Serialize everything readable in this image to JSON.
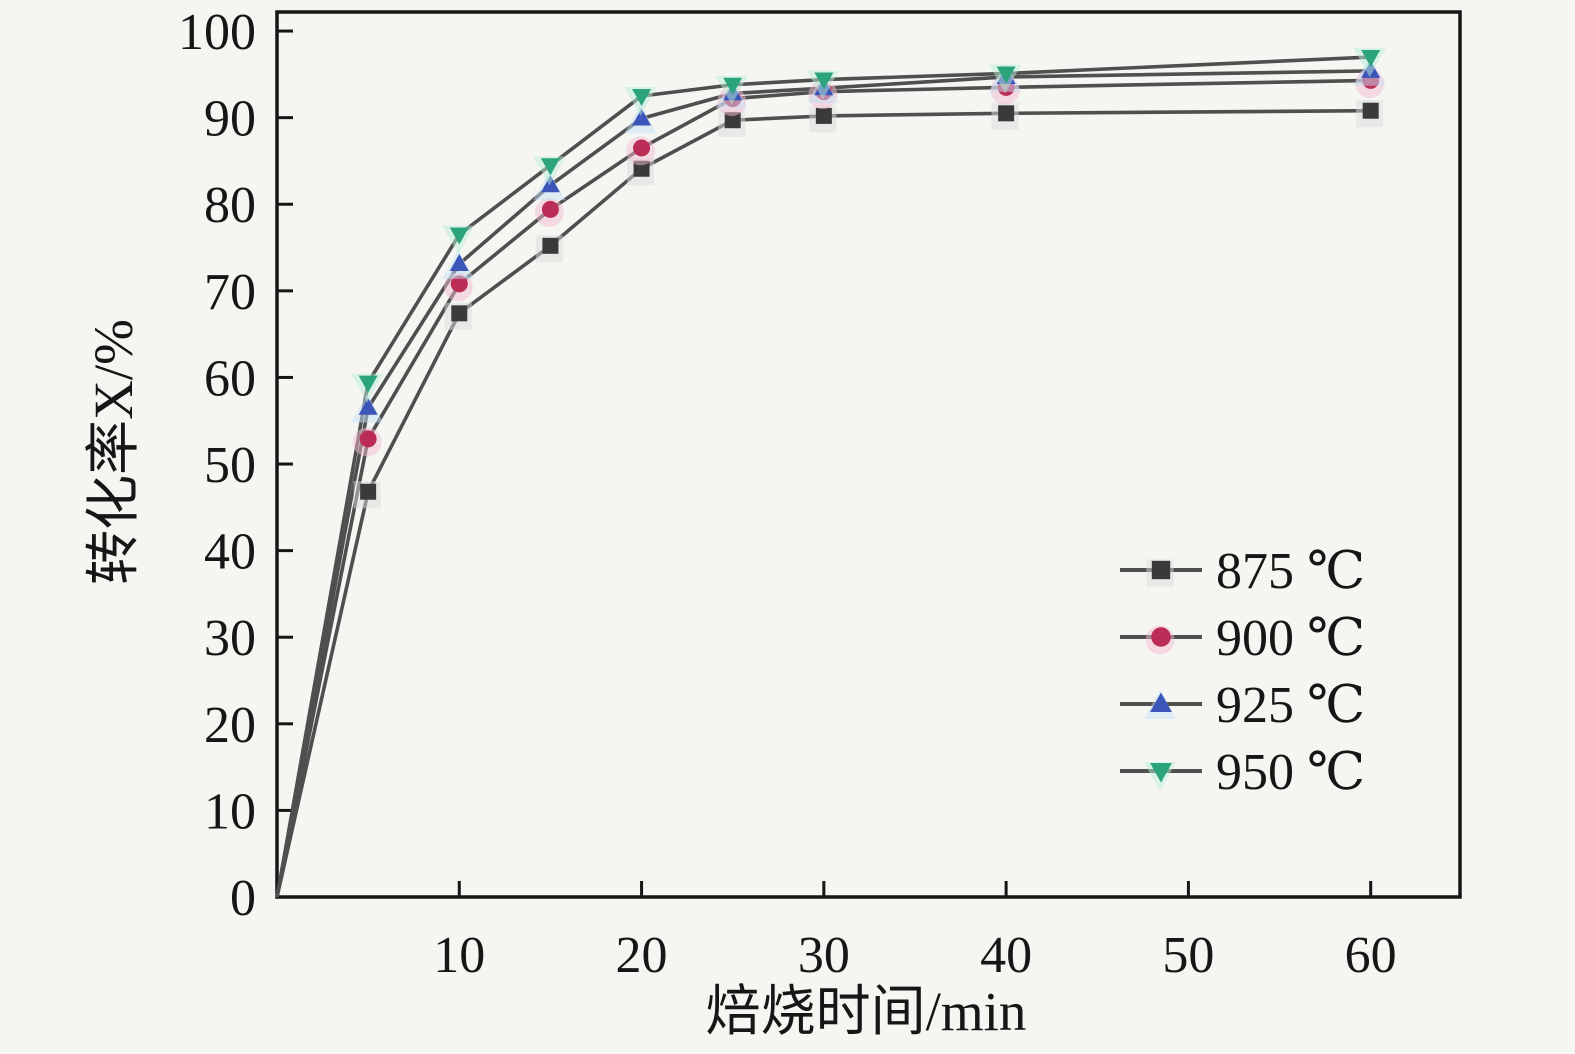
{
  "figure": {
    "background": "#f5f5f2",
    "frame_color": "#161616",
    "text_color": "#161616"
  },
  "chart_data": {
    "type": "line",
    "title": "",
    "xlabel": "焙烧时间/min",
    "ylabel": "转化率X/%",
    "grid": false,
    "legend_position": "inside lower right",
    "xlim": [
      0,
      64.9
    ],
    "ylim": [
      0,
      102.2
    ],
    "x_ticks": [
      10,
      20,
      30,
      40,
      50,
      60
    ],
    "y_ticks": [
      0,
      10,
      20,
      30,
      40,
      50,
      60,
      70,
      80,
      90,
      100
    ],
    "x": [
      0,
      5,
      10,
      15,
      20,
      25,
      30,
      40,
      60
    ],
    "line_color": "#4f4f4f",
    "series": [
      {
        "name": "875 ℃",
        "marker": "square",
        "color": "#3a3a3a",
        "halo": "#dcdcdc",
        "values": [
          0,
          46.8,
          67.4,
          75.2,
          84.1,
          89.7,
          90.2,
          90.5,
          90.8
        ]
      },
      {
        "name": "900 ℃",
        "marker": "circle",
        "color": "#bb2d56",
        "halo": "#f3bcd2",
        "values": [
          0,
          52.9,
          70.8,
          79.4,
          86.5,
          92.2,
          93.0,
          93.5,
          94.3
        ]
      },
      {
        "name": "925 ℃",
        "marker": "triangle-up",
        "color": "#3c55b8",
        "halo": "#c3e2f6",
        "values": [
          0,
          56.5,
          73.1,
          82.2,
          89.9,
          92.8,
          93.4,
          94.7,
          95.4
        ]
      },
      {
        "name": "950 ℃",
        "marker": "triangle-down",
        "color": "#2ba47e",
        "halo": "#b9edd5",
        "values": [
          0,
          59.4,
          76.5,
          84.5,
          92.5,
          93.8,
          94.4,
          95.1,
          97.0
        ]
      }
    ]
  }
}
